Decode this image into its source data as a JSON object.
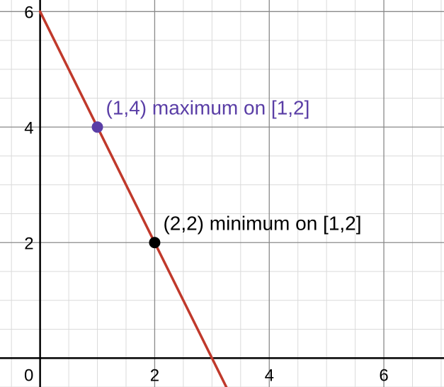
{
  "chart_data": {
    "type": "line",
    "title": "",
    "xlabel": "",
    "ylabel": "",
    "xlim": [
      -0.7,
      7.05
    ],
    "ylim": [
      -0.5,
      6.2
    ],
    "grid": true,
    "minor_step": 0.5,
    "major_step": 2,
    "x_ticks": [
      {
        "value": 0,
        "label": "0"
      },
      {
        "value": 2,
        "label": "2"
      },
      {
        "value": 4,
        "label": "4"
      },
      {
        "value": 6,
        "label": "6"
      }
    ],
    "y_ticks": [
      {
        "value": 2,
        "label": "2"
      },
      {
        "value": 4,
        "label": "4"
      },
      {
        "value": 6,
        "label": "6"
      }
    ],
    "series": [
      {
        "color": "#c0392b",
        "points": [
          [
            0,
            6
          ],
          [
            3.3,
            -0.6
          ]
        ]
      }
    ],
    "points": [
      {
        "x": 1,
        "y": 4,
        "color": "#5a3ea6",
        "label": "(1,4) maximum on [1,2]"
      },
      {
        "x": 2,
        "y": 2,
        "color": "#000000",
        "label": "(2,2) minimum on [1,2]"
      }
    ]
  }
}
